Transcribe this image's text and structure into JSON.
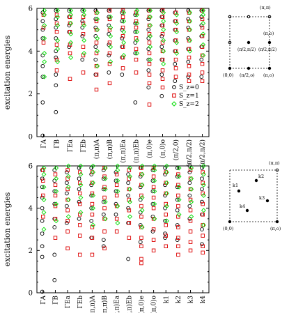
{
  "chart_data": [
    {
      "type": "scatter",
      "ylabel": "excitation energies",
      "ylim": [
        0,
        6
      ],
      "yticks": [
        0,
        2,
        4,
        6
      ],
      "categories": [
        "ΓA",
        "ΓB",
        "ΓEa",
        "ΓEb",
        "(π,π)A",
        "(π,π)B",
        "(π,π)Ea",
        "(π,π)Eb",
        "(π,0)e",
        "(π,0)o",
        "(π/2,0)",
        "(π/2,π/2)",
        "(π/2,π/2)"
      ],
      "legend": {
        "position": "right",
        "entries": [
          "S_z=0",
          "S_z=1",
          "S_z=2"
        ]
      },
      "colors": {
        "S_z=0": "#000000",
        "S_z=1": "#dd0000",
        "S_z=2": "#00dd00"
      },
      "series": [
        {
          "name": "S_z=0",
          "values": [
            [
              0.05,
              1.6,
              2.8,
              3.3,
              3.8,
              4.6,
              5.0,
              5.4,
              5.8
            ],
            [
              1.15,
              2.4,
              2.9,
              3.7,
              4.0,
              4.6,
              5.1,
              5.5,
              5.9
            ],
            [
              4.2,
              4.9,
              5.2,
              5.6,
              5.9
            ],
            [
              3.6,
              4.7,
              5.1,
              5.4,
              5.9
            ],
            [
              2.9,
              3.6,
              4.2,
              4.7,
              5.1,
              5.5,
              5.9
            ],
            [
              3.0,
              3.8,
              4.3,
              4.8,
              5.2,
              5.6,
              5.9
            ],
            [
              2.9,
              3.7,
              4.2,
              4.6,
              5.0,
              5.4,
              5.8
            ],
            [
              1.6,
              3.9,
              4.4,
              4.9,
              5.3,
              5.7
            ],
            [
              2.3,
              3.1,
              3.6,
              4.1,
              4.6,
              5.0,
              5.5,
              5.9
            ],
            [
              1.9,
              2.9,
              3.6,
              4.2,
              4.7,
              5.2,
              5.6,
              5.9
            ],
            [
              2.6,
              3.4,
              4.0,
              4.5,
              5.0,
              5.4,
              5.8
            ],
            [
              2.8,
              3.5,
              4.1,
              4.6,
              5.1,
              5.5,
              5.9
            ],
            [
              2.8,
              3.6,
              4.2,
              4.7,
              5.2,
              5.6,
              5.9
            ]
          ]
        },
        {
          "name": "S_z=1",
          "values": [
            [
              4.4,
              5.1,
              5.7
            ],
            [
              3.1,
              3.6,
              4.3,
              4.9,
              5.3,
              5.7
            ],
            [
              2.7,
              3.9,
              4.3,
              4.9,
              5.3,
              5.6
            ],
            [
              3.0,
              3.8,
              4.2,
              4.8,
              5.3,
              5.6
            ],
            [
              2.2,
              2.9,
              3.3,
              3.9,
              4.4,
              5.0,
              5.4,
              5.8
            ],
            [
              2.5,
              3.4,
              3.9,
              4.4,
              5.0,
              5.5,
              5.9
            ],
            [
              3.2,
              3.7,
              4.2,
              4.7,
              5.1,
              5.6,
              5.9
            ],
            [
              3.0,
              3.6,
              4.1,
              4.6,
              5.1,
              5.4,
              5.8
            ],
            [
              1.5,
              2.5,
              2.9,
              3.4,
              3.9,
              4.4,
              4.8,
              5.2,
              5.6,
              5.9
            ],
            [
              2.3,
              2.7,
              3.1,
              3.6,
              4.0,
              4.4,
              4.8,
              5.2,
              5.6,
              5.9
            ],
            [
              1.8,
              2.4,
              2.8,
              3.2,
              3.6,
              4.0,
              4.5,
              5.0,
              5.4,
              5.8
            ],
            [
              2.6,
              2.9,
              3.3,
              3.7,
              4.1,
              4.5,
              5.0,
              5.4,
              5.8
            ],
            [
              1.9,
              2.6,
              3.0,
              3.4,
              3.8,
              4.2,
              4.7,
              5.1,
              5.5,
              5.9
            ]
          ]
        },
        {
          "name": "S_z=2",
          "values": [
            [
              2.8,
              3.5,
              3.9,
              4.6,
              5.2,
              5.7,
              5.9
            ],
            [
              3.5,
              4.1,
              4.5,
              5.2,
              5.6,
              5.9
            ],
            [
              3.7,
              4.4,
              4.8,
              5.3,
              5.7,
              5.9
            ],
            [
              3.9,
              4.5,
              5.2,
              5.7,
              5.9
            ],
            [
              3.3,
              4.0,
              4.6,
              5.0,
              5.5,
              5.8
            ],
            [
              3.5,
              4.2,
              4.7,
              5.1,
              5.6
            ],
            [
              3.8,
              4.4,
              4.9,
              5.4,
              5.8
            ],
            [
              3.9,
              4.5,
              4.9,
              5.3,
              5.7,
              5.9
            ],
            [
              3.6,
              4.2,
              4.7,
              5.2,
              5.6,
              5.9
            ],
            [
              3.4,
              4.0,
              4.5,
              5.0,
              5.4,
              5.8
            ],
            [
              3.9,
              4.4,
              4.9,
              5.3,
              5.7
            ],
            [
              4.0,
              4.5,
              5.0,
              5.4,
              5.8
            ],
            [
              3.8,
              4.3,
              4.8,
              5.3,
              5.7,
              5.9
            ]
          ]
        }
      ]
    },
    {
      "type": "scatter",
      "ylabel": "excitation energies",
      "ylim": [
        0,
        6
      ],
      "yticks": [
        0,
        2,
        4,
        6
      ],
      "categories": [
        "ΓA",
        "ΓB",
        "ΓEa",
        "ΓEb",
        "(π,π)A",
        "(π,π)B",
        "(π,π)Ea",
        "(π,π)Eb",
        "(π,0)e",
        "(π,0)o",
        "k1",
        "k2",
        "k3",
        "k4"
      ],
      "colors": {
        "S_z=0": "#000000",
        "S_z=1": "#dd0000",
        "S_z=2": "#00dd00"
      },
      "series": [
        {
          "name": "S_z=0",
          "values": [
            [
              0.05,
              1.7,
              2.2,
              2.8,
              3.4,
              4.0,
              4.5,
              5.0,
              5.4,
              5.8
            ],
            [
              0.6,
              1.8,
              3.1,
              3.5,
              4.2,
              4.8,
              5.3,
              5.8
            ],
            [
              3.3,
              4.1,
              4.7,
              5.2,
              5.7
            ],
            [
              3.5,
              4.3,
              4.9,
              5.4,
              5.9
            ],
            [
              2.6,
              3.4,
              4.0,
              4.6,
              5.1,
              5.6,
              5.9
            ],
            [
              2.2,
              2.5,
              3.7,
              4.3,
              4.9,
              5.4,
              5.8
            ],
            [
              3.7,
              4.2,
              4.8,
              5.3,
              5.7
            ],
            [
              1.6,
              3.3,
              4.0,
              4.6,
              5.2,
              5.6
            ],
            [
              2.4,
              3.2,
              3.8,
              4.4,
              5.0,
              5.5,
              5.9
            ],
            [
              2.9,
              3.6,
              4.2,
              4.8,
              5.3,
              5.8
            ],
            [
              2.6,
              2.8,
              3.4,
              4.0,
              4.6,
              5.1,
              5.6,
              5.9
            ],
            [
              2.5,
              3.2,
              3.9,
              4.4,
              5.0,
              5.5,
              5.9
            ],
            [
              3.5,
              4.1,
              4.6,
              5.2,
              5.7,
              6.0
            ],
            [
              2.3,
              3.0,
              3.7,
              4.3,
              4.9,
              5.4,
              5.9
            ]
          ]
        },
        {
          "name": "S_z=1",
          "values": [
            [
              3.6,
              4.6,
              5.3,
              5.8
            ],
            [
              2.6,
              3.5,
              4.1,
              4.6,
              5.1,
              5.6
            ],
            [
              2.1,
              2.9,
              3.4,
              3.9,
              4.4,
              4.9,
              5.4,
              5.8
            ],
            [
              1.8,
              2.7,
              3.2,
              3.7,
              4.2,
              4.7,
              5.2,
              5.7
            ],
            [
              1.8,
              2.6,
              3.1,
              3.7,
              4.2,
              4.7,
              5.2,
              5.7
            ],
            [
              2.1,
              2.9,
              3.5,
              4.0,
              4.5,
              5.0,
              5.5,
              5.9
            ],
            [
              2.9,
              3.5,
              4.1,
              4.6,
              5.1,
              5.6
            ],
            [
              2.6,
              3.3,
              3.9,
              4.4,
              4.9,
              5.4,
              5.8
            ],
            [
              1.4,
              1.6,
              2.2,
              2.6,
              3.1,
              3.6,
              4.1,
              4.6,
              5.1,
              5.6,
              5.9
            ],
            [
              2.0,
              2.5,
              3.0,
              3.5,
              4.0,
              4.5,
              5.0,
              5.5,
              5.9
            ],
            [
              2.2,
              2.7,
              3.2,
              3.7,
              4.2,
              4.7,
              5.2,
              5.7
            ],
            [
              1.8,
              2.2,
              2.6,
              3.1,
              3.6,
              4.1,
              4.6,
              5.1,
              5.6
            ],
            [
              2.0,
              2.4,
              2.9,
              3.4,
              3.9,
              4.4,
              4.9,
              5.4,
              5.8
            ],
            [
              1.9,
              2.2,
              2.7,
              3.2,
              3.7,
              4.2,
              4.7,
              5.2,
              5.7
            ]
          ]
        },
        {
          "name": "S_z=2",
          "values": [
            [
              3.0,
              3.8,
              4.4,
              5.0,
              5.6,
              5.9
            ],
            [
              3.4,
              4.2,
              4.8,
              5.4,
              5.9
            ],
            [
              3.6,
              4.4,
              5.0,
              5.5,
              6.0
            ],
            [
              3.8,
              4.5,
              5.1,
              5.6,
              6.0
            ],
            [
              3.2,
              4.0,
              4.6,
              5.2,
              5.7,
              6.0
            ],
            [
              3.5,
              4.3,
              4.9,
              5.4,
              5.9
            ],
            [
              3.3,
              4.1,
              4.8,
              5.3,
              5.8,
              6.0
            ],
            [
              3.6,
              4.3,
              4.9,
              5.5,
              5.9
            ],
            [
              3.1,
              3.9,
              4.5,
              5.1,
              5.6,
              6.0
            ],
            [
              3.5,
              4.2,
              4.8,
              5.3,
              5.8,
              6.0
            ],
            [
              3.4,
              4.1,
              4.7,
              5.2,
              5.7,
              6.0
            ],
            [
              3.7,
              4.4,
              5.0,
              5.5,
              5.9
            ],
            [
              3.6,
              4.3,
              4.9,
              5.4,
              5.9
            ],
            [
              3.2,
              3.9,
              4.6,
              5.1,
              5.6,
              6.0
            ]
          ]
        }
      ]
    }
  ],
  "insets": [
    {
      "name": "top-bz-diagram",
      "labels": [
        "(π,π)",
        "(π/2,π/2)",
        "(π/2,π/2)",
        "(π,o)",
        "(0,0)",
        "(π/2,o)",
        "(π,o)"
      ]
    },
    {
      "name": "bottom-bz-diagram",
      "labels": [
        "(π,π)",
        "k1",
        "k2",
        "k3",
        "k4",
        "(0,0)",
        "(π,o)"
      ]
    }
  ]
}
